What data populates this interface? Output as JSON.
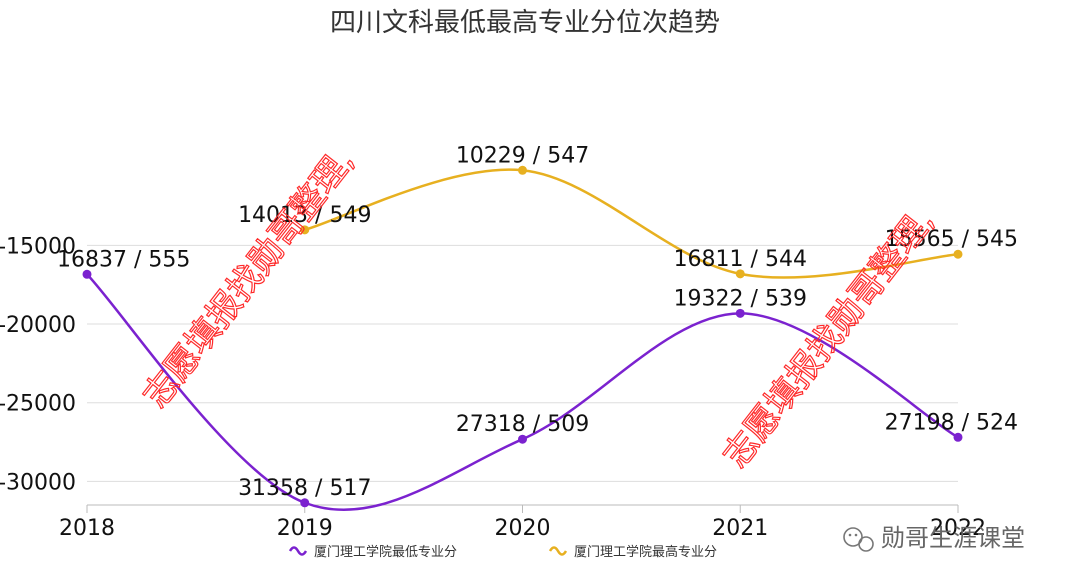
{
  "chart_data": {
    "type": "line",
    "title": "四川文科最低最高专业分位次趋势",
    "x": [
      "2018",
      "2019",
      "2020",
      "2021",
      "2022"
    ],
    "ylim": [
      -31500,
      -5000
    ],
    "yticks": [
      "-15000",
      "-20000",
      "-25000",
      "-30000"
    ],
    "grid": true,
    "legend_position": "bottom",
    "series": [
      {
        "name": "厦门理工学院最低专业分",
        "color": "#7b22cf",
        "values": [
          -16837,
          -31358,
          -27318,
          -19322,
          -27198
        ],
        "labels": [
          "16837 / 555",
          "31358 / 517",
          "27318 / 509",
          "19322 / 539",
          "27198 / 524"
        ]
      },
      {
        "name": "厦门理工学院最高专业分",
        "color": "#e7b020",
        "values": [
          null,
          -14013,
          -10229,
          -16811,
          -15565
        ],
        "labels": [
          null,
          "14013 / 549",
          "10229 / 547",
          "16811 / 544",
          "15565 / 545"
        ]
      }
    ]
  },
  "watermark": "志愿填报找勋哥整理,",
  "brand": "勋哥生涯课堂",
  "colors": {
    "grid": "#dddddd",
    "axis": "#bbbbbb",
    "watermark": "#ff2a2a"
  }
}
